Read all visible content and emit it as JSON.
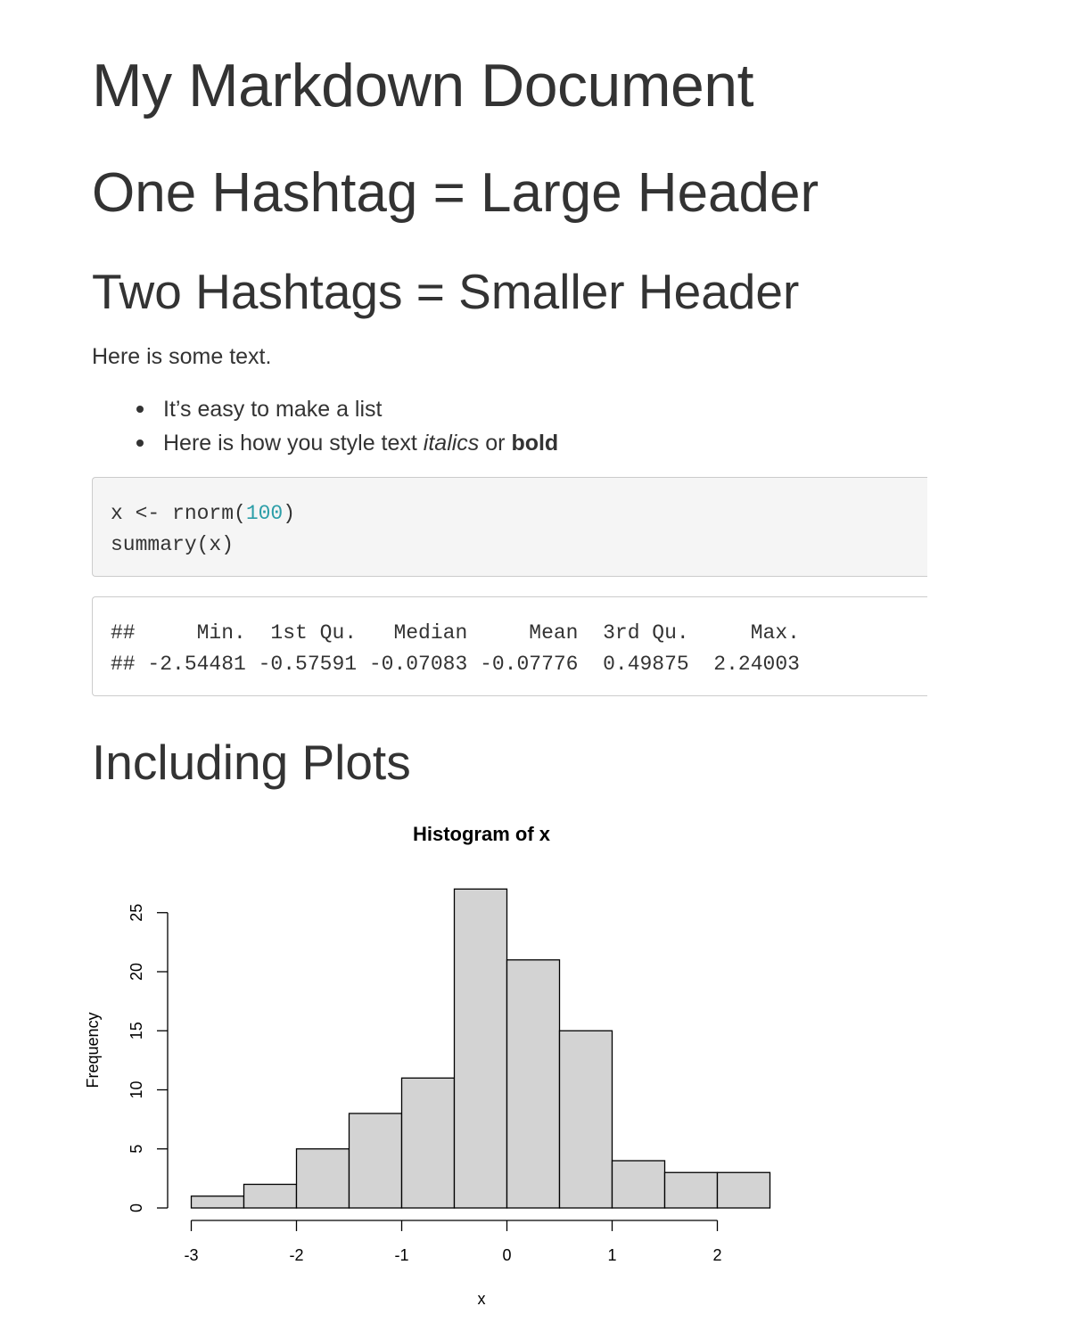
{
  "document": {
    "title": "My Markdown Document",
    "header_large": "One Hashtag = Large Header",
    "header_small": "Two Hashtags = Smaller Header",
    "paragraph": "Here is some text.",
    "list": {
      "item1": "It’s easy to make a list",
      "item2_prefix": "Here is how you style text ",
      "item2_italic": "italics",
      "item2_middle": " or ",
      "item2_bold": "bold"
    },
    "code_input": {
      "line1_prefix": "x <- rnorm(",
      "line1_number": "100",
      "line1_suffix": ")",
      "line2": "summary(x)"
    },
    "code_output": {
      "line1": "##     Min.  1st Qu.   Median     Mean  3rd Qu.     Max. ",
      "line2": "## -2.54481 -0.57591 -0.07083 -0.07776  0.49875  2.24003 "
    },
    "plots_header": "Including Plots"
  },
  "colors": {
    "text": "#333333",
    "code_bg": "#f5f5f5",
    "code_border": "#cccccc",
    "number": "#2c9ea8",
    "bar_fill": "#d3d3d3"
  },
  "chart_data": {
    "type": "bar",
    "title": "Histogram of x",
    "xlabel": "x",
    "ylabel": "Frequency",
    "bin_edges": [
      -3,
      -2.5,
      -2,
      -1.5,
      -1,
      -0.5,
      0,
      0.5,
      1,
      1.5,
      2,
      2.5
    ],
    "values": [
      1,
      2,
      5,
      8,
      11,
      27,
      21,
      15,
      4,
      3,
      3
    ],
    "xticks": [
      -3,
      -2,
      -1,
      0,
      1,
      2
    ],
    "yticks": [
      0,
      5,
      10,
      15,
      20,
      25
    ],
    "xlim": [
      -3,
      2.5
    ],
    "ylim": [
      0,
      27
    ],
    "grid": false
  }
}
